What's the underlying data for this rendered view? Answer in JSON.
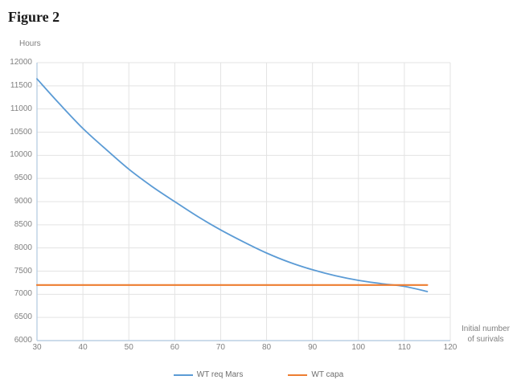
{
  "title": "Figure 2",
  "chart_data": {
    "type": "line",
    "title": "Figure 2",
    "y_axis_title": "Hours",
    "x_axis_title_lines": [
      "Initial number",
      "of surivals"
    ],
    "xlim": [
      30,
      120
    ],
    "ylim": [
      6000,
      12000
    ],
    "x_tick_step": 10,
    "y_tick_step": 500,
    "grid": true,
    "legend_position": "bottom",
    "x": [
      30,
      35,
      40,
      45,
      50,
      55,
      60,
      65,
      70,
      75,
      80,
      85,
      90,
      95,
      100,
      105,
      110,
      115
    ],
    "series": [
      {
        "name": "WT req Mars",
        "color": "#5B9BD5",
        "values": [
          11650,
          11100,
          10580,
          10130,
          9700,
          9330,
          9000,
          8680,
          8390,
          8130,
          7890,
          7690,
          7530,
          7400,
          7300,
          7230,
          7170,
          7060
        ]
      },
      {
        "name": "WT capa",
        "color": "#ED7D31",
        "values": [
          7200,
          7200,
          7200,
          7200,
          7200,
          7200,
          7200,
          7200,
          7200,
          7200,
          7200,
          7200,
          7200,
          7200,
          7200,
          7200,
          7200,
          7200
        ]
      }
    ],
    "crossing_point_x": 108,
    "gridline_color": "#E3E3E3",
    "axis_line_color": "#BBCFE3",
    "tick_label_color": "#808080"
  }
}
